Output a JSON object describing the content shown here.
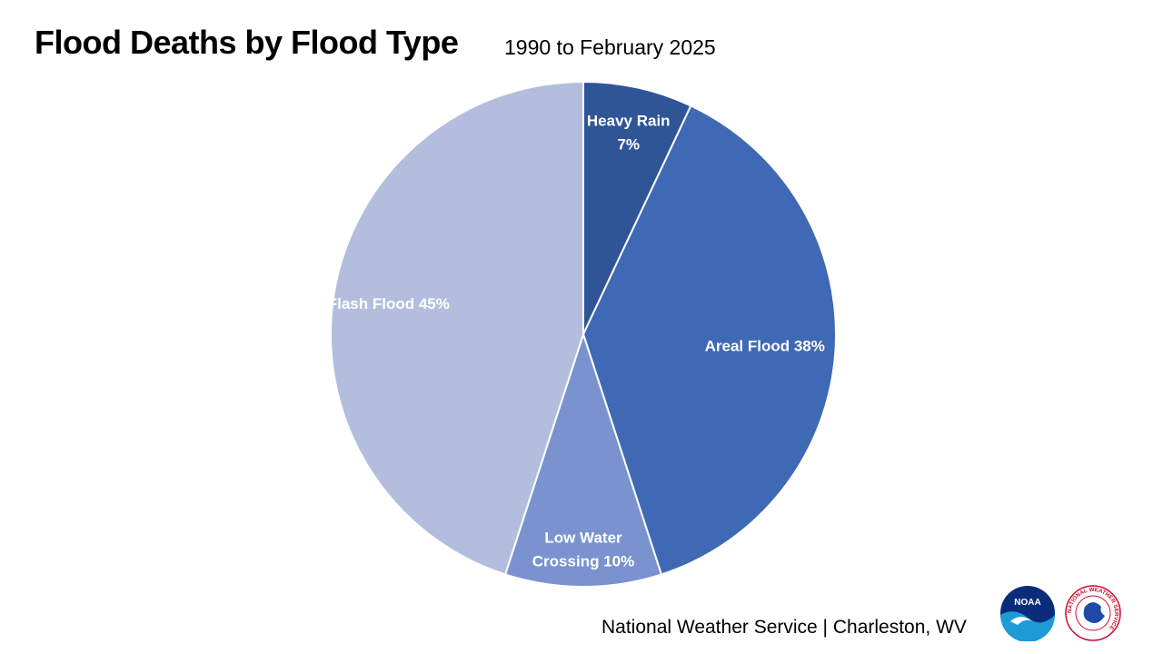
{
  "header": {
    "title": "Flood Deaths by Flood Type",
    "subtitle": "1990 to February 2025"
  },
  "chart_data": {
    "type": "pie",
    "title": "Flood Deaths by Flood Type",
    "subtitle": "1990 to February 2025",
    "slices": [
      {
        "name": "Heavy Rain",
        "value": 7,
        "percent_label": "7%",
        "color": "#2F5597"
      },
      {
        "name": "Areal Flood",
        "value": 38,
        "percent_label": "38%",
        "color": "#3F69B5"
      },
      {
        "name": "Low Water Crossing",
        "value": 10,
        "percent_label": "10%",
        "color": "#7A93CF"
      },
      {
        "name": "Flash Flood",
        "value": 45,
        "percent_label": "45%",
        "color": "#B3BEDE"
      }
    ],
    "label_lines": [
      [
        "Heavy Rain",
        "7%"
      ],
      [
        "Areal Flood 38%"
      ],
      [
        "Low Water",
        "Crossing 10%"
      ],
      [
        "Flash Flood 45%"
      ]
    ],
    "legend": "none"
  },
  "footer": {
    "credit": "National Weather Service | Charleston, WV"
  },
  "logos": {
    "noaa_text": "NOAA",
    "nws_ring_text": "NATIONAL WEATHER SERVICE"
  }
}
